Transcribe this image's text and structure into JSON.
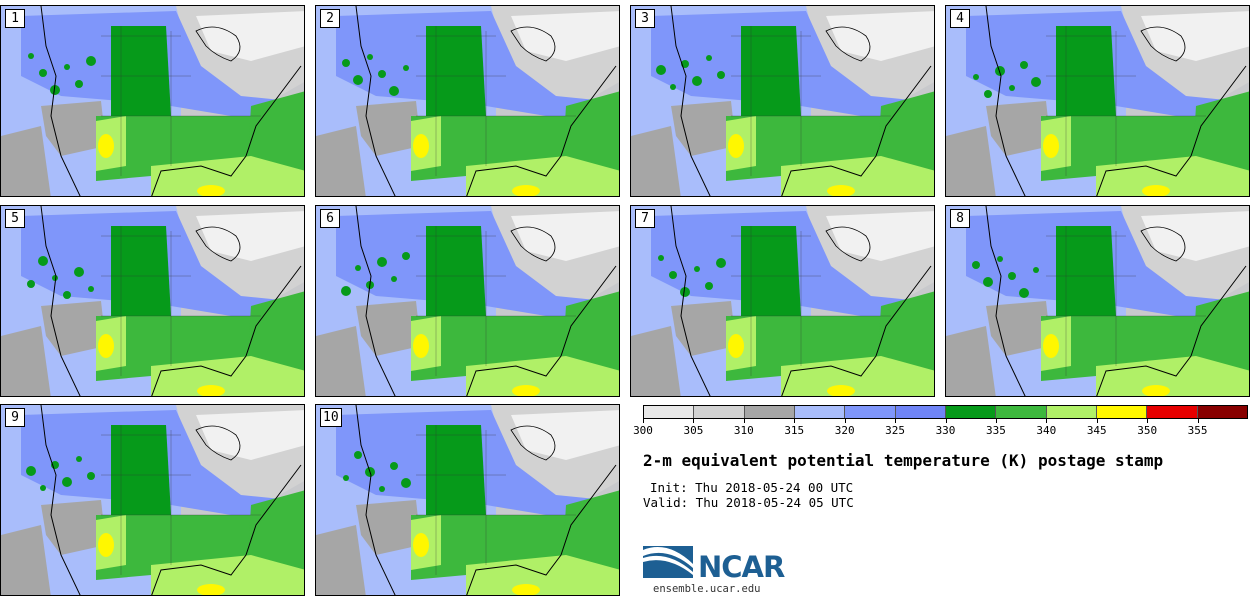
{
  "title": "2-m equivalent potential temperature (K) postage stamp",
  "init_text": "Init: Thu 2018-05-24 00 UTC",
  "valid_text": "Valid: Thu 2018-05-24 05 UTC",
  "colorbar": {
    "units": "K",
    "tick_labels": [
      "300",
      "305",
      "310",
      "315",
      "320",
      "325",
      "330",
      "335",
      "340",
      "345",
      "350",
      "355"
    ],
    "colors": [
      "#e8e8e8",
      "#d2d2d2",
      "#a6a6a6",
      "#a9bdfb",
      "#7f96fa",
      "#6f84f6",
      "#069a1a",
      "#3db83d",
      "#b0f067",
      "#fff700",
      "#e60000",
      "#880000"
    ]
  },
  "members": [
    {
      "label": "1"
    },
    {
      "label": "2"
    },
    {
      "label": "3"
    },
    {
      "label": "4"
    },
    {
      "label": "5"
    },
    {
      "label": "6"
    },
    {
      "label": "7"
    },
    {
      "label": "8"
    },
    {
      "label": "9"
    },
    {
      "label": "10"
    }
  ],
  "logo": {
    "brand": "NCAR",
    "url": "ensemble.ucar.edu"
  }
}
